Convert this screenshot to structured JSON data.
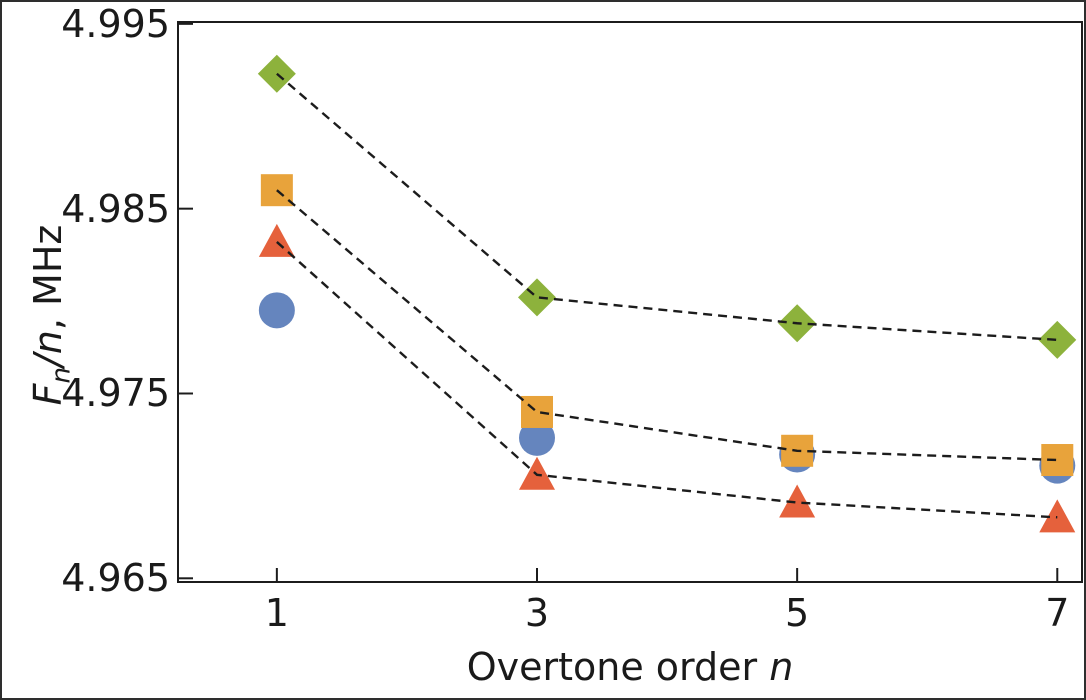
{
  "figure": {
    "background": "#ffffff",
    "frame_color": "#1c1c1c",
    "text_color": "#1a1a1a"
  },
  "chart_data": {
    "type": "scatter",
    "title": "",
    "xlabel": {
      "prefix": "Overtone order ",
      "var": "n"
    },
    "ylabel": {
      "f": "F",
      "sub": "n",
      "slash": "/",
      "var": "n",
      "suffix": ", MHz"
    },
    "x": [
      1,
      3,
      5,
      7
    ],
    "xtick_labels": [
      "1",
      "3",
      "5",
      "7"
    ],
    "ytick_values": [
      4.995,
      4.985,
      4.975,
      4.965
    ],
    "ytick_labels": [
      "4.995",
      "4.985",
      "4.975",
      "4.965"
    ],
    "xlim": [
      0.24,
      7.19
    ],
    "ylim": [
      4.9648,
      4.9951
    ],
    "grid": false,
    "legend": "none",
    "line_style": {
      "color": "#1c1c1c",
      "dash": "9 6",
      "width": 2.4
    },
    "series": [
      {
        "name": "circle-series",
        "marker": "circle",
        "color": "#6585BE",
        "line": false,
        "values": [
          4.9795,
          4.9726,
          4.9717,
          4.9711
        ]
      },
      {
        "name": "triangle-series",
        "marker": "triangle",
        "color": "#E5613C",
        "line": true,
        "values": [
          4.9832,
          4.9706,
          4.9691,
          4.9683
        ]
      },
      {
        "name": "square-series",
        "marker": "square",
        "color": "#E8A33B",
        "line": true,
        "values": [
          4.986,
          4.974,
          4.9719,
          4.9714
        ]
      },
      {
        "name": "diamond-series",
        "marker": "diamond",
        "color": "#8DB23C",
        "line": true,
        "values": [
          4.9923,
          4.9802,
          4.9788,
          4.9779
        ]
      }
    ]
  }
}
